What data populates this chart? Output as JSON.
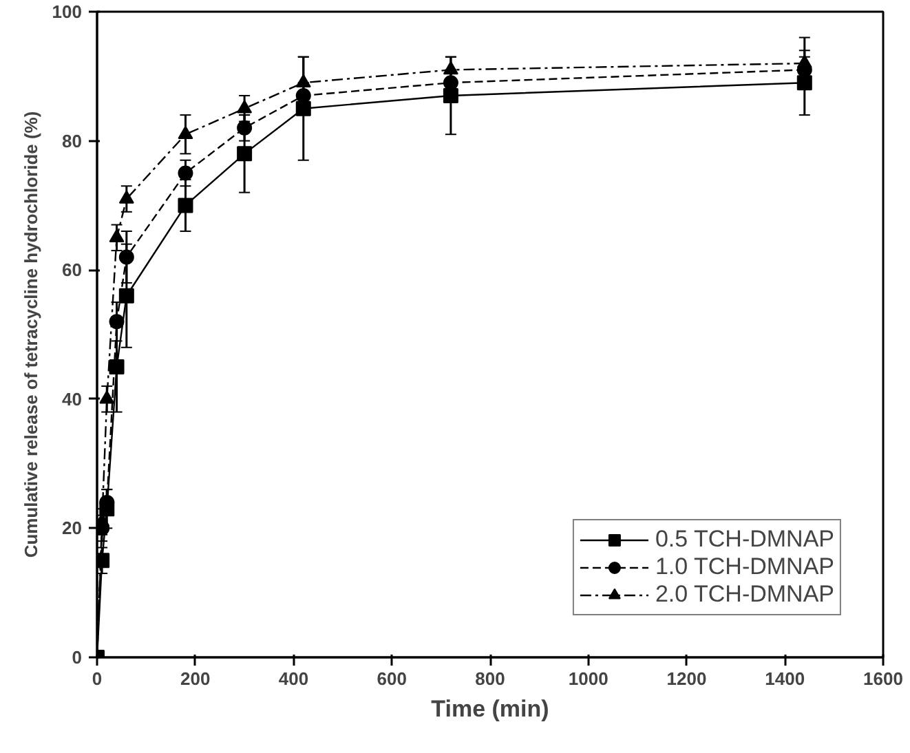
{
  "chart_data": {
    "type": "line",
    "xlabel": "Time (min)",
    "ylabel": "Cumulative release of tetracycline hydrochloride (%)",
    "x": [
      0,
      10,
      20,
      40,
      60,
      180,
      300,
      420,
      720,
      1440
    ],
    "series": [
      {
        "name": "0.5 TCH-DMNAP",
        "color": "#000000",
        "marker": "square",
        "line_style": "solid",
        "values": [
          0,
          15,
          23,
          45,
          56,
          70,
          78,
          85,
          87,
          89
        ],
        "errors": [
          null,
          2,
          3,
          7,
          8,
          4,
          6,
          8,
          6,
          5
        ]
      },
      {
        "name": "1.0 TCH-DMNAP",
        "color": "#000000",
        "marker": "circle",
        "line_style": "dashed",
        "values": [
          0,
          20,
          24,
          52,
          62,
          75,
          82,
          87,
          89,
          91
        ],
        "errors": [
          null,
          2,
          2,
          3,
          4,
          2,
          2,
          2,
          2,
          2
        ]
      },
      {
        "name": "2.0 TCH-DMNAP",
        "color": "#000000",
        "marker": "triangle",
        "line_style": "dashdot",
        "values": [
          0,
          21,
          40,
          65,
          71,
          81,
          85,
          89,
          91,
          92
        ],
        "errors": [
          null,
          2,
          2,
          2,
          2,
          3,
          2,
          4,
          2,
          4
        ]
      }
    ],
    "xlim": [
      0,
      1600
    ],
    "xticks": [
      0,
      200,
      400,
      600,
      800,
      1000,
      1200,
      1400,
      1600
    ],
    "ylim": [
      0,
      100
    ],
    "yticks": [
      0,
      20,
      40,
      60,
      80,
      100
    ],
    "grid": false,
    "legend": "bottom right"
  }
}
